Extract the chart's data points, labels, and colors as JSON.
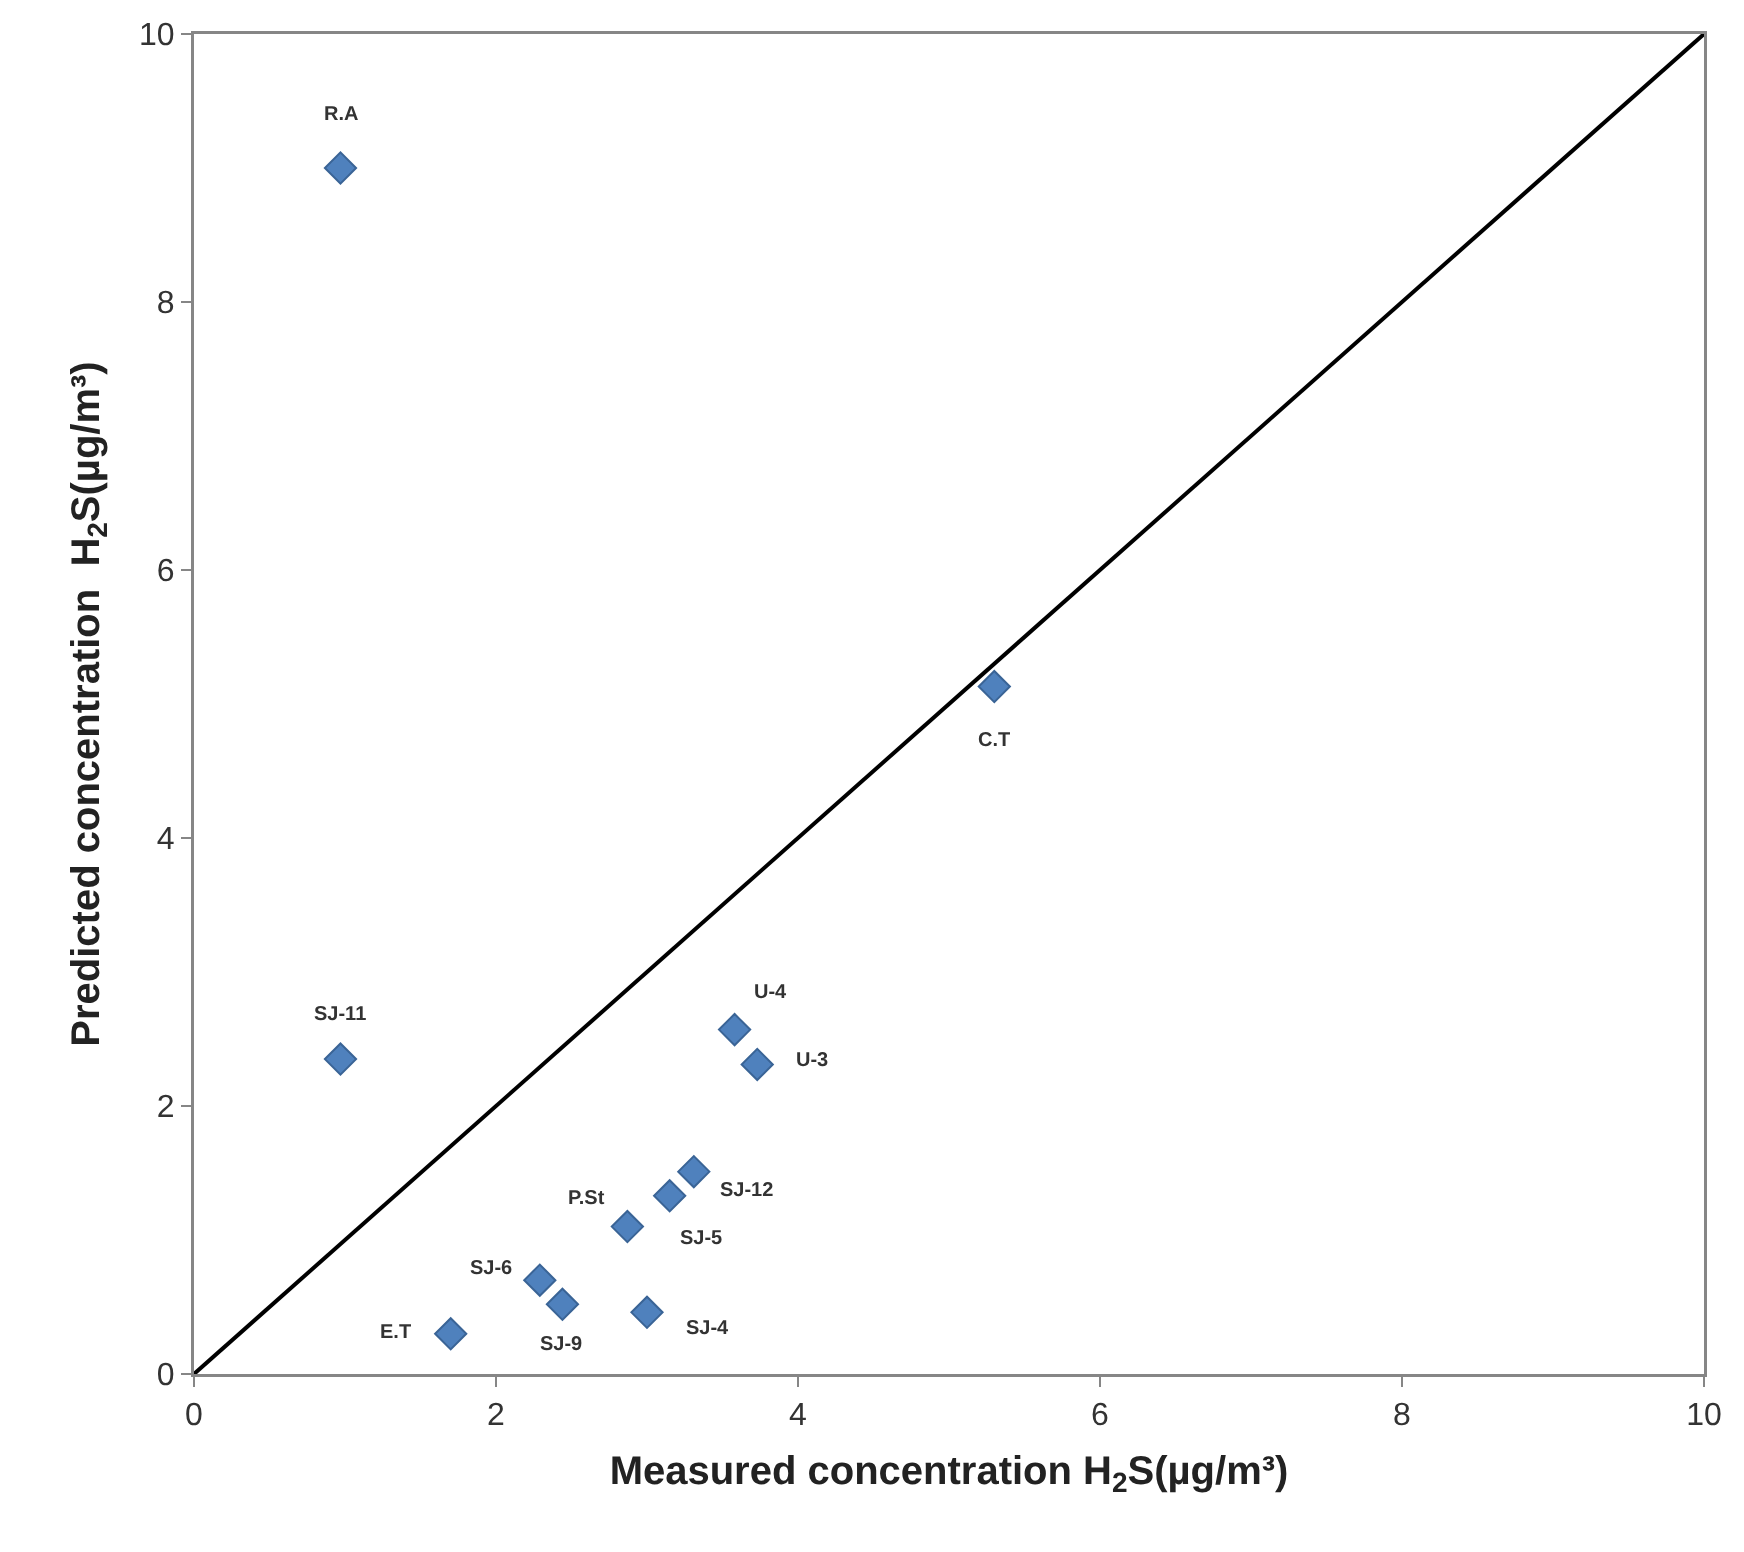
{
  "chart_data": {
    "type": "scatter",
    "xlabel": "Measured concentration H$_{2}$S(µg/m³)",
    "ylabel": "Predicted concentration  H$_{2}$S(µg/m³)",
    "xlim": [
      0,
      10
    ],
    "ylim": [
      0,
      10
    ],
    "xticks": [
      0,
      2,
      4,
      6,
      8,
      10
    ],
    "yticks": [
      0,
      2,
      4,
      6,
      8,
      10
    ],
    "grid": false,
    "marker": "diamond",
    "series": [
      {
        "type": "line",
        "color": "#000000",
        "x": [
          0,
          10
        ],
        "values": [
          0,
          10
        ],
        "line_style": "solid",
        "marker": "none"
      },
      {
        "color": "#4f81bd",
        "x": [
          0.97,
          0.97,
          1.7,
          2.29,
          2.44,
          3.0,
          2.87,
          3.15,
          3.31,
          3.58,
          3.73,
          5.3
        ],
        "values": [
          9.0,
          2.35,
          0.3,
          0.7,
          0.52,
          0.46,
          1.1,
          1.33,
          1.51,
          2.57,
          2.31,
          5.13
        ]
      }
    ],
    "annotations": [
      {
        "text": "R.A",
        "x": 0.97,
        "y": 9.0
      },
      {
        "text": "SJ-11",
        "x": 0.97,
        "y": 2.35
      },
      {
        "text": "E.T",
        "x": 1.7,
        "y": 0.3
      },
      {
        "text": "SJ-6",
        "x": 2.29,
        "y": 0.7
      },
      {
        "text": "SJ-9",
        "x": 2.44,
        "y": 0.52
      },
      {
        "text": "SJ-4",
        "x": 3.0,
        "y": 0.46
      },
      {
        "text": "P.St",
        "x": 2.87,
        "y": 1.1
      },
      {
        "text": "SJ-5",
        "x": 3.15,
        "y": 1.33
      },
      {
        "text": "SJ-12",
        "x": 3.31,
        "y": 1.51
      },
      {
        "text": "U-4",
        "x": 3.58,
        "y": 2.57
      },
      {
        "text": "U-3",
        "x": 3.73,
        "y": 2.31
      },
      {
        "text": "C.T",
        "x": 5.3,
        "y": 5.13
      }
    ]
  }
}
